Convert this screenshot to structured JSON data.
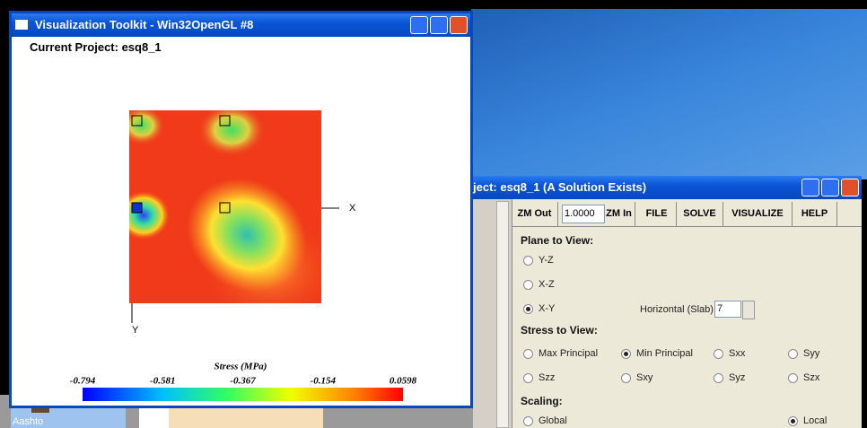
{
  "vtk_window": {
    "title": "Visualization Toolkit - Win32OpenGL #8",
    "project_label": "Current Project: esq8_1",
    "axis_x": "X",
    "axis_y": "Y",
    "colorbar": {
      "title": "Stress (MPa)",
      "labels": [
        "-0.794",
        "-0.581",
        "-0.367",
        "-0.154",
        "0.0598"
      ]
    }
  },
  "desktop_icon": {
    "label": "Aashto"
  },
  "app_window": {
    "title": "ject: esq8_1 (A Solution Exists)",
    "toolbar": {
      "zoom_out": "ZM Out",
      "zoom_value": "1.0000",
      "zoom_in": "ZM In",
      "buttons": [
        "FILE",
        "SOLVE",
        "VISUALIZE",
        "HELP"
      ]
    },
    "plane_section": {
      "heading": "Plane to View:",
      "options": [
        "Y-Z",
        "X-Z",
        "X-Y"
      ],
      "selected": 2,
      "slab_label": "Horizontal (Slab)",
      "slab_value": "7"
    },
    "stress_section": {
      "heading": "Stress to View:",
      "options": [
        "Max Principal",
        "Min Principal",
        "Sxx",
        "Syy",
        "Szz",
        "Sxy",
        "Syz",
        "Szx"
      ],
      "selected": 1
    },
    "scaling_section": {
      "heading": "Scaling:",
      "options": [
        "Global",
        "Local"
      ],
      "selected": 1
    }
  }
}
